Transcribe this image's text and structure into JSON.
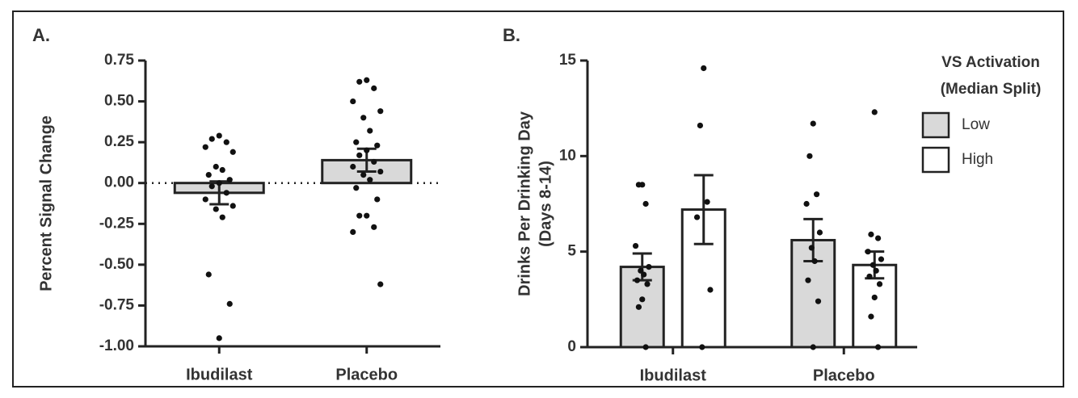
{
  "chart_data": [
    {
      "type": "bar",
      "panel_label": "A.",
      "ylabel": [
        "Percent Signal Change"
      ],
      "categories": [
        "Ibudilast",
        "Placebo"
      ],
      "values": [
        -0.06,
        0.14
      ],
      "errors": [
        0.07,
        0.07
      ],
      "points": [
        [
          0.29,
          0.27,
          0.25,
          0.22,
          0.19,
          0.1,
          0.08,
          0.05,
          0.02,
          0.0,
          -0.02,
          -0.06,
          -0.1,
          -0.14,
          -0.16,
          -0.21,
          -0.56,
          -0.74,
          -0.95
        ],
        [
          0.63,
          0.62,
          0.58,
          0.5,
          0.44,
          0.4,
          0.32,
          0.25,
          0.23,
          0.2,
          0.17,
          0.13,
          0.1,
          0.07,
          0.05,
          0.02,
          -0.03,
          -0.1,
          -0.2,
          -0.2,
          -0.27,
          -0.3,
          -0.62
        ]
      ],
      "color": "#d9d9d9",
      "zero_line": true,
      "ylim": [
        -1.0,
        0.75
      ],
      "yticks": [
        0.75,
        {
          "value": 0.5,
          "label": "0.50"
        },
        0.25,
        {
          "value": 0,
          "label": "0.00"
        },
        -0.25,
        {
          "value": -0.5,
          "label": "-0.50"
        },
        -0.75,
        {
          "value": -1,
          "label": "-1.00"
        }
      ]
    },
    {
      "type": "grouped_bar",
      "panel_label": "B.",
      "ylabel": [
        "Drinks Per Drinking Day",
        "(Days 8-14)"
      ],
      "categories": [
        "Ibudilast",
        "Placebo"
      ],
      "legend_title": [
        "VS Activation",
        "(Median Split)"
      ],
      "series": [
        {
          "name": "Low",
          "color": "#d9d9d9",
          "values": [
            4.2,
            5.6
          ],
          "errors": [
            0.7,
            1.1
          ],
          "points": [
            [
              8.5,
              8.5,
              7.5,
              5.3,
              4.2,
              4.0,
              3.8,
              3.5,
              3.3,
              2.5,
              2.1,
              0
            ],
            [
              11.7,
              10,
              8,
              7.5,
              6,
              5.2,
              4.5,
              3.5,
              2.4,
              0
            ]
          ]
        },
        {
          "name": "High",
          "color": "#ffffff",
          "values": [
            7.2,
            4.3
          ],
          "errors": [
            1.8,
            0.7
          ],
          "points": [
            [
              14.6,
              11.6,
              7.6,
              6.8,
              3.0,
              0
            ],
            [
              12.3,
              5.9,
              5.7,
              5.0,
              4.6,
              4.3,
              4.0,
              3.7,
              3.3,
              2.6,
              1.6,
              0
            ]
          ]
        }
      ],
      "ylim": [
        0,
        15
      ],
      "yticks": [
        0,
        5,
        10,
        15
      ]
    }
  ]
}
